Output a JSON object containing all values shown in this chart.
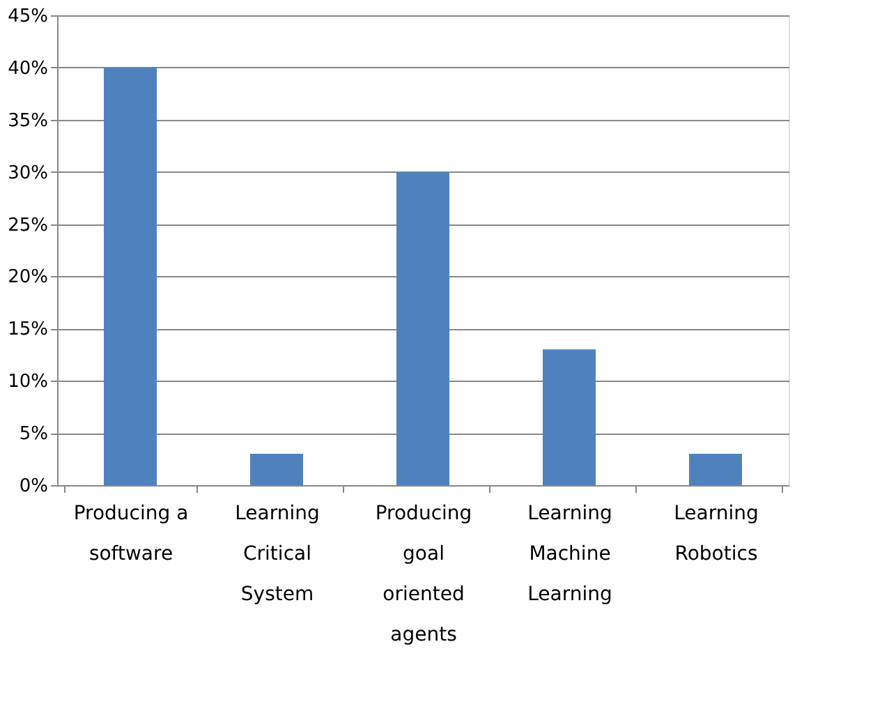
{
  "chart_data": {
    "type": "bar",
    "categories": [
      "Producing a software",
      "Learning Critical System",
      "Producing goal oriented agents",
      "Learning Machine Learning",
      "Learning Robotics"
    ],
    "values": [
      40,
      3,
      30,
      13,
      3
    ],
    "color": "#4f81bd",
    "ylim": [
      0,
      45
    ],
    "yticks": [
      {
        "value": 0,
        "label": "0%"
      },
      {
        "value": 5,
        "label": "5%"
      },
      {
        "value": 10,
        "label": "10%"
      },
      {
        "value": 15,
        "label": "15%"
      },
      {
        "value": 20,
        "label": "20%"
      },
      {
        "value": 25,
        "label": "25%"
      },
      {
        "value": 30,
        "label": "30%"
      },
      {
        "value": 35,
        "label": "35%"
      },
      {
        "value": 40,
        "label": "40%"
      },
      {
        "value": 45,
        "label": "45%"
      }
    ],
    "grid": "y"
  }
}
